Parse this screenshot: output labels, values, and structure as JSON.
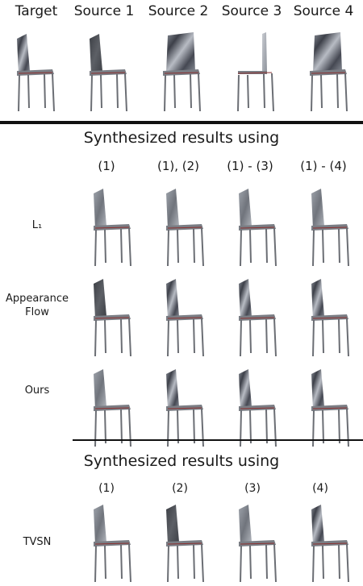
{
  "top_headers": [
    "Target",
    "Source 1",
    "Source 2",
    "Source 3",
    "Source 4"
  ],
  "section1": {
    "title": "Synthesized results using",
    "columns": [
      "(1)",
      "(1), (2)",
      "(1) - (3)",
      "(1) - (4)"
    ],
    "rows": [
      {
        "label": "L₁"
      },
      {
        "label": "Appearance\nFlow"
      },
      {
        "label": "Ours"
      }
    ]
  },
  "section2": {
    "title": "Synthesized results using",
    "columns": [
      "(1)",
      "(2)",
      "(3)",
      "(4)"
    ],
    "rows": [
      {
        "label": "TVSN"
      }
    ]
  },
  "colors": {
    "rule": "#111111",
    "chair_dark": "#3c3f45",
    "chair_mid": "#8a8f98",
    "chair_light": "#c9ccd2",
    "seat_accent": "#8a3030"
  }
}
